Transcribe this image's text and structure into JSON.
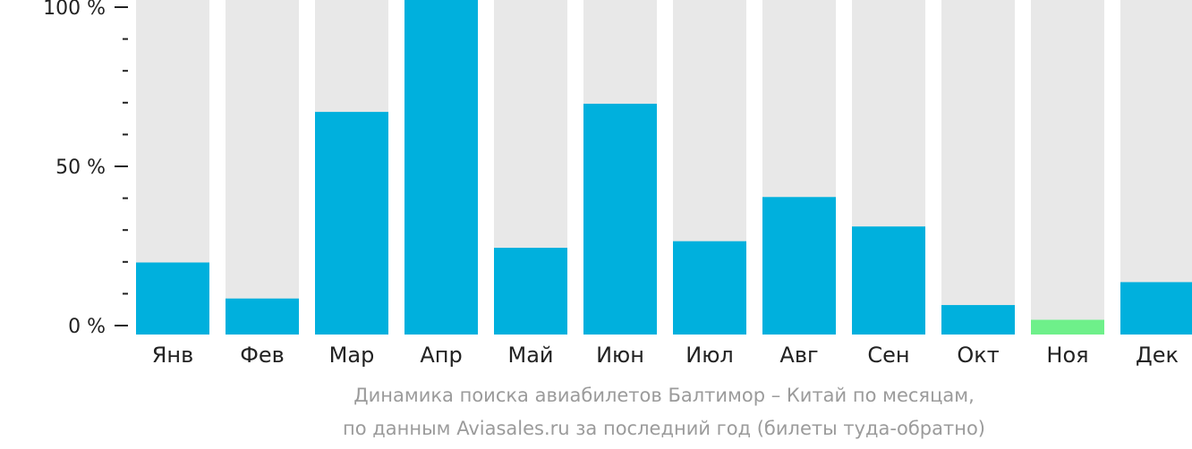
{
  "chart_data": {
    "type": "bar",
    "categories": [
      "Янв",
      "Фев",
      "Мар",
      "Апр",
      "Май",
      "Июн",
      "Июл",
      "Авг",
      "Сен",
      "Окт",
      "Ноя",
      "Дек"
    ],
    "values": [
      22,
      11,
      68,
      104,
      26.5,
      70.5,
      28.5,
      42,
      33,
      9,
      4.5,
      16
    ],
    "highlight_index": 10,
    "ylim": [
      0,
      100
    ],
    "yticks": [
      {
        "value": 100,
        "label": "100 %"
      },
      {
        "value": 50,
        "label": "50 %"
      },
      {
        "value": 0,
        "label": "0 %"
      }
    ],
    "minor_tick_step": 10,
    "title": "Динамика поиска авиабилетов Балтимор – Китай по месяцам,",
    "subtitle": "по данным Aviasales.ru за последний год (билеты туда-обратно)",
    "colors": {
      "bar": "#00b0dd",
      "highlight": "#6ef08a",
      "background_bar": "#e8e8e8",
      "axis": "#222222",
      "caption": "#9b9b9b"
    }
  }
}
